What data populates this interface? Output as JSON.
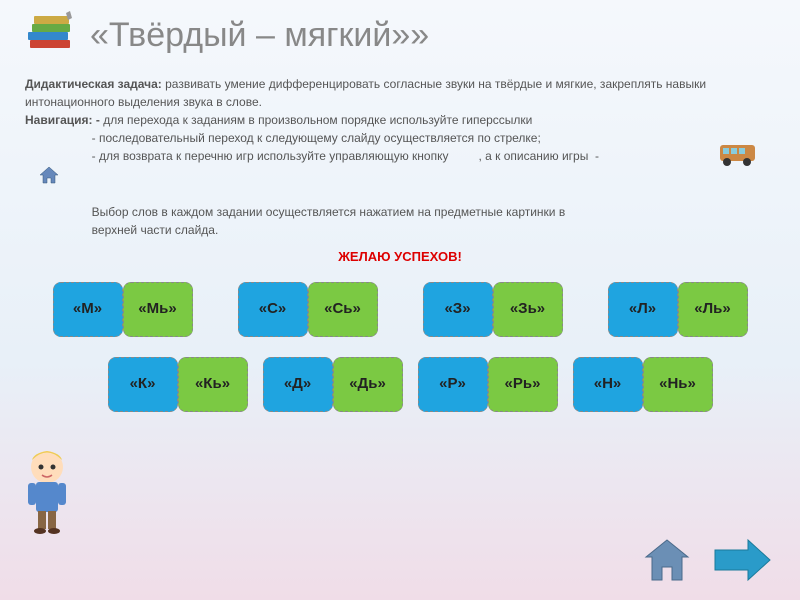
{
  "header": {
    "title": "«Твёрдый – мягкий»»"
  },
  "description": {
    "task_label": "Дидактическая задача:",
    "task_text": " развивать умение дифференцировать согласные звуки на твёрдые и мягкие, закреплять навыки интонационного выделения звука в слове.",
    "nav_label": "Навигация:  -",
    "nav_line1": " для перехода к заданиям в произвольном порядке используйте гиперссылки",
    "nav_line2": "                    - последовательный переход к следующему слайду осуществляется по стрелке;",
    "nav_line3": "                    - для возврата к перечню игр используйте управляющую кнопку         , а к описанию игры  -",
    "choice_text": "                    Выбор слов в каждом задании осуществляется нажатием на предметные картинки в",
    "choice_text2": "                    верхней части слайда.",
    "wish": "ЖЕЛАЮ УСПЕХОВ!"
  },
  "row1": [
    {
      "hard": "«М»",
      "soft": "«Мь»"
    },
    {
      "hard": "«С»",
      "soft": "«Сь»"
    },
    {
      "hard": "«З»",
      "soft": "«Зь»"
    },
    {
      "hard": "«Л»",
      "soft": "«Ль»"
    }
  ],
  "row2": [
    {
      "hard": "«К»",
      "soft": "«Кь»"
    },
    {
      "hard": "«Д»",
      "soft": "«Дь»"
    },
    {
      "hard": "«Р»",
      "soft": "«Рь»"
    },
    {
      "hard": "«Н»",
      "soft": "«Нь»"
    }
  ],
  "colors": {
    "hard_bg": "#1fa4e0",
    "soft_bg": "#7bc943",
    "wish_color": "#d00000",
    "title_color": "#888888"
  }
}
